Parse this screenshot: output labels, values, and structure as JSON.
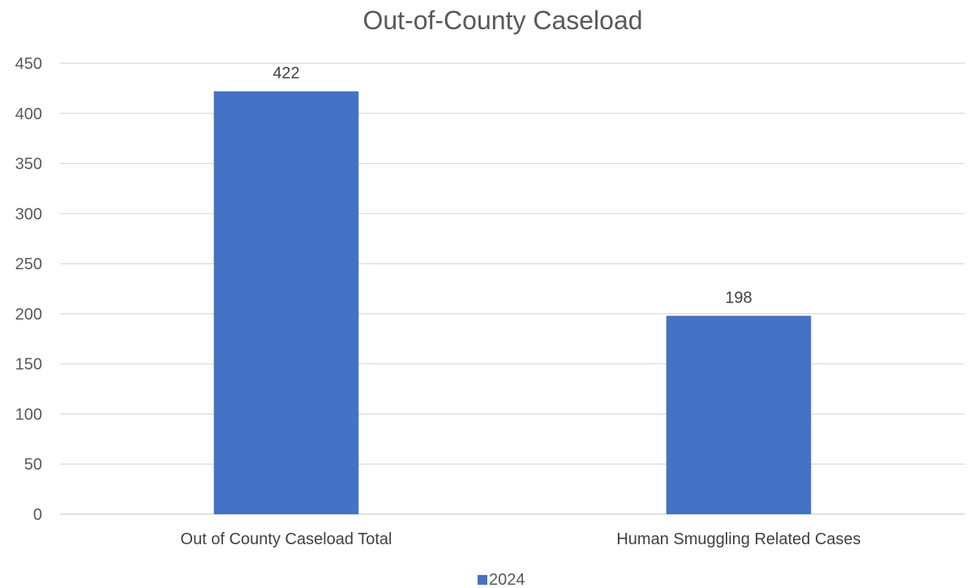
{
  "chart_data": {
    "type": "bar",
    "title": "Out-of-County Caseload",
    "categories": [
      "Out of County Caseload Total",
      "Human Smuggling Related Cases"
    ],
    "series": [
      {
        "name": "2024",
        "values": [
          422,
          198
        ],
        "color": "#4472c4"
      }
    ],
    "data_labels": [
      "422",
      "198"
    ],
    "xlabel": "",
    "ylabel": "",
    "ylim": [
      0,
      450
    ],
    "y_ticks": [
      0,
      50,
      100,
      150,
      200,
      250,
      300,
      350,
      400,
      450
    ],
    "grid": true,
    "legend_position": "bottom"
  }
}
